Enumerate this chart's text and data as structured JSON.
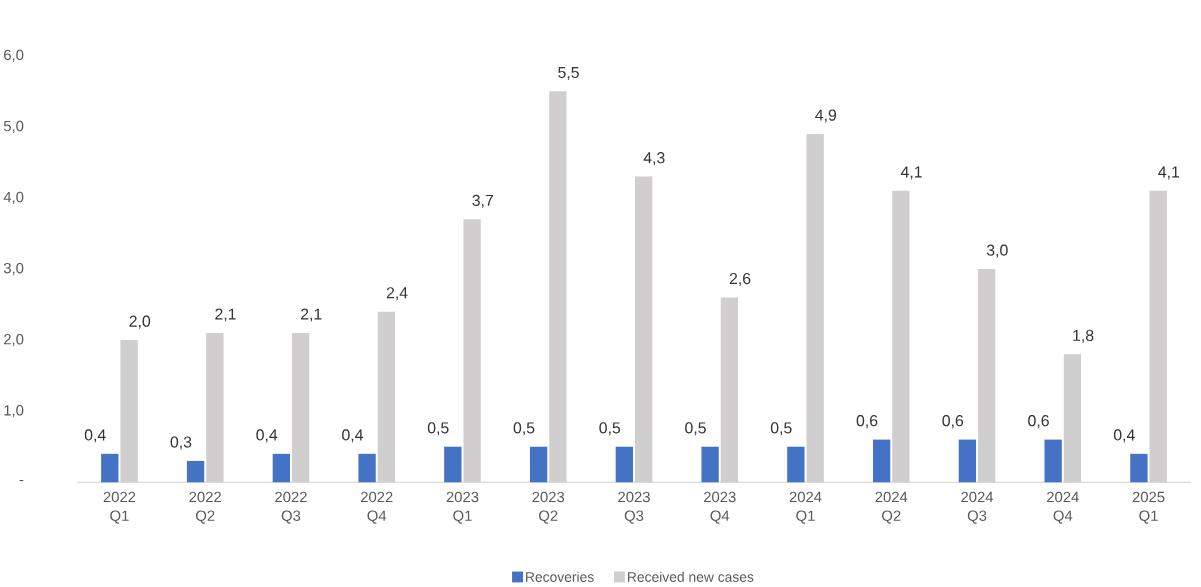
{
  "chart_data": {
    "type": "bar",
    "categories": [
      "2022 Q1",
      "2022 Q2",
      "2022 Q3",
      "2022 Q4",
      "2023 Q1",
      "2023 Q2",
      "2023 Q3",
      "2023 Q4",
      "2024 Q1",
      "2024 Q2",
      "2024 Q3",
      "2024 Q4",
      "2025 Q1"
    ],
    "series": [
      {
        "name": "Recoveries",
        "color": "#4472c4",
        "values": [
          0.4,
          0.3,
          0.4,
          0.4,
          0.5,
          0.5,
          0.5,
          0.5,
          0.5,
          0.6,
          0.6,
          0.6,
          0.4
        ],
        "value_labels": [
          "0,4",
          "0,3",
          "0,4",
          "0,4",
          "0,5",
          "0,5",
          "0,5",
          "0,5",
          "0,5",
          "0,6",
          "0,6",
          "0,6",
          "0,4"
        ]
      },
      {
        "name": "Received new cases",
        "color": "#d0cece",
        "values": [
          2.0,
          2.1,
          2.1,
          2.4,
          3.7,
          5.5,
          4.3,
          2.6,
          4.9,
          4.1,
          3.0,
          1.8,
          4.1
        ],
        "value_labels": [
          "2,0",
          "2,1",
          "2,1",
          "2,4",
          "3,7",
          "5,5",
          "4,3",
          "2,6",
          "4,9",
          "4,1",
          "3,0",
          "1,8",
          "4,1"
        ]
      }
    ],
    "ylim": [
      0,
      6
    ],
    "yticks": [
      {
        "value": 0,
        "label": "-"
      },
      {
        "value": 1,
        "label": "1,0"
      },
      {
        "value": 2,
        "label": "2,0"
      },
      {
        "value": 3,
        "label": "3,0"
      },
      {
        "value": 4,
        "label": "4,0"
      },
      {
        "value": 5,
        "label": "5,0"
      },
      {
        "value": 6,
        "label": "6,0"
      }
    ],
    "grid": false,
    "legend": "bottom"
  }
}
